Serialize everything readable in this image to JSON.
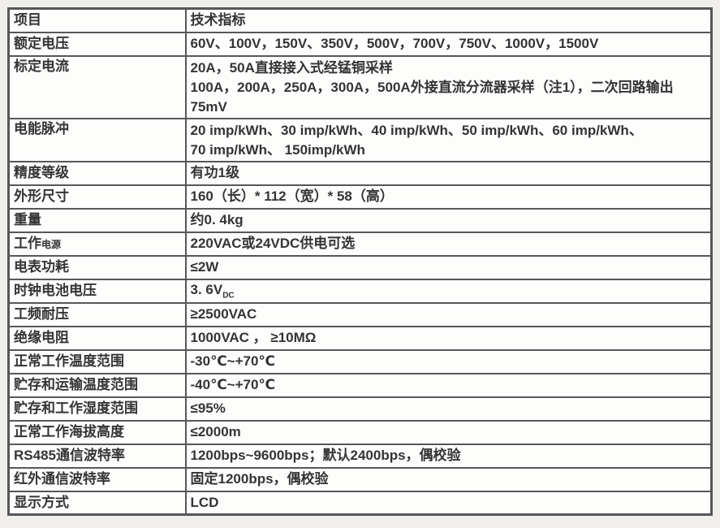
{
  "page": {
    "background": "#f1efec",
    "table_background": "#fdfdfc",
    "border_color": "#57575a",
    "text_color": "#343434"
  },
  "table": {
    "header": {
      "item": "项目",
      "spec": "技术指标"
    },
    "rows": [
      {
        "label": "额定电压",
        "value": "60V、100V，150V、350V，500V，700V，750V、1000V，1500V"
      },
      {
        "label": "标定电流",
        "value": "20A，50A直接接入式经锰铜采样\n100A，200A，250A，300A，500A外接直流分流器采样（注1），二次回路输出75mV"
      },
      {
        "label": "电能脉冲",
        "value": "20 imp/kWh、30 imp/kWh、40 imp/kWh、50 imp/kWh、60 imp/kWh、\n70 imp/kWh、 150imp/kWh"
      },
      {
        "label": "精度等级",
        "value": "有功1级"
      },
      {
        "label": "外形尺寸",
        "value": "160（长）* 112（宽）* 58（高）"
      },
      {
        "label": "重量",
        "value": "约0. 4kg"
      },
      {
        "label_main": "工作",
        "label_small": "电源",
        "value": "220VAC或24VDC供电可选"
      },
      {
        "label": "电表功耗",
        "value": "≤2W"
      },
      {
        "label": "时钟电池电压",
        "value_main": "3. 6V",
        "value_sub": "DC"
      },
      {
        "label": "工频耐压",
        "value": "≥2500VAC"
      },
      {
        "label": "绝缘电阻",
        "value": "1000VAC ， ≥10MΩ"
      },
      {
        "label": "正常工作温度范围",
        "value": "-30℃~+70℃"
      },
      {
        "label": "贮存和运输温度范围",
        "value": "-40℃~+70℃"
      },
      {
        "label": "贮存和工作湿度范围",
        "value": "≤95%"
      },
      {
        "label": "正常工作海拔高度",
        "value": "≤2000m"
      },
      {
        "label": "RS485通信波特率",
        "value": "1200bps~9600bps；默认2400bps，偶校验"
      },
      {
        "label": "红外通信波特率",
        "value": "固定1200bps，偶校验"
      },
      {
        "label": "显示方式",
        "value": "LCD"
      }
    ]
  }
}
